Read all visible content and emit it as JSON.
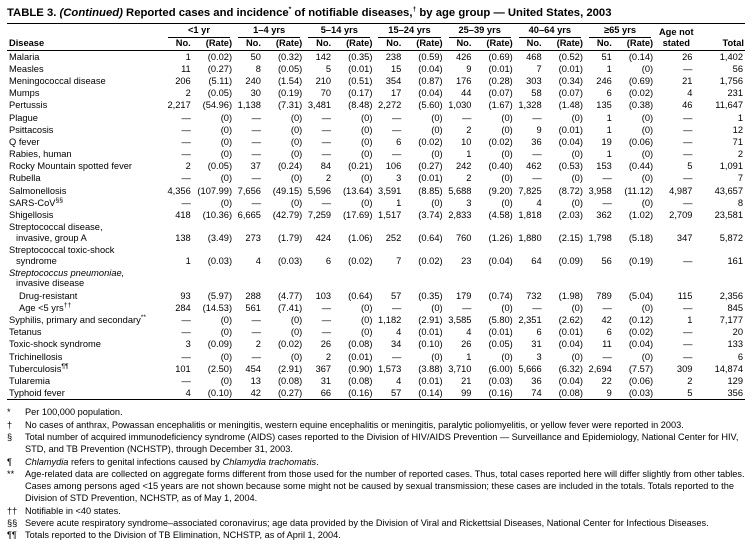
{
  "title": {
    "label": "TABLE 3.",
    "continued": "(Continued)",
    "main_pre": "Reported cases and incidence",
    "sup1": "*",
    "main_mid": " of notifiable diseases,",
    "sup2": "†",
    "main_post": " by age group — United States, 2003"
  },
  "table": {
    "age_groups": [
      "<1 yr",
      "1–4 yrs",
      "5–14 yrs",
      "15–24 yrs",
      "25–39 yrs",
      "40–64 yrs",
      "≥65 yrs"
    ],
    "headers": {
      "disease": "Disease",
      "no": "No.",
      "rate": "(Rate)",
      "age_not_line1": "Age not",
      "age_not_line2": "stated",
      "total": "Total"
    },
    "rows": [
      {
        "name": "Malaria",
        "cells": [
          "1",
          "(0.02)",
          "50",
          "(0.32)",
          "142",
          "(0.35)",
          "238",
          "(0.59)",
          "426",
          "(0.69)",
          "468",
          "(0.52)",
          "51",
          "(0.14)",
          "26",
          "1,402"
        ]
      },
      {
        "name": "Measles",
        "cells": [
          "11",
          "(0.27)",
          "8",
          "(0.05)",
          "5",
          "(0.01)",
          "15",
          "(0.04)",
          "9",
          "(0.01)",
          "7",
          "(0.01)",
          "1",
          "(0)",
          "—",
          "56"
        ]
      },
      {
        "name": "Meningococcal disease",
        "cells": [
          "206",
          "(5.11)",
          "240",
          "(1.54)",
          "210",
          "(0.51)",
          "354",
          "(0.87)",
          "176",
          "(0.28)",
          "303",
          "(0.34)",
          "246",
          "(0.69)",
          "21",
          "1,756"
        ]
      },
      {
        "name": "Mumps",
        "cells": [
          "2",
          "(0.05)",
          "30",
          "(0.19)",
          "70",
          "(0.17)",
          "17",
          "(0.04)",
          "44",
          "(0.07)",
          "58",
          "(0.07)",
          "6",
          "(0.02)",
          "4",
          "231"
        ]
      },
      {
        "name": "Pertussis",
        "cells": [
          "2,217",
          "(54.96)",
          "1,138",
          "(7.31)",
          "3,481",
          "(8.48)",
          "2,272",
          "(5.60)",
          "1,030",
          "(1.67)",
          "1,328",
          "(1.48)",
          "135",
          "(0.38)",
          "46",
          "11,647"
        ]
      },
      {
        "name": "Plague",
        "cells": [
          "—",
          "(0)",
          "—",
          "(0)",
          "—",
          "(0)",
          "—",
          "(0)",
          "—",
          "(0)",
          "—",
          "(0)",
          "1",
          "(0)",
          "—",
          "1"
        ]
      },
      {
        "name": "Psittacosis",
        "cells": [
          "—",
          "(0)",
          "—",
          "(0)",
          "—",
          "(0)",
          "—",
          "(0)",
          "2",
          "(0)",
          "9",
          "(0.01)",
          "1",
          "(0)",
          "—",
          "12"
        ]
      },
      {
        "name": "Q fever",
        "cells": [
          "—",
          "(0)",
          "—",
          "(0)",
          "—",
          "(0)",
          "6",
          "(0.02)",
          "10",
          "(0.02)",
          "36",
          "(0.04)",
          "19",
          "(0.06)",
          "—",
          "71"
        ]
      },
      {
        "name": "Rabies, human",
        "cells": [
          "—",
          "(0)",
          "—",
          "(0)",
          "—",
          "(0)",
          "—",
          "(0)",
          "1",
          "(0)",
          "—",
          "(0)",
          "1",
          "(0)",
          "—",
          "2"
        ]
      },
      {
        "name": "Rocky Mountain spotted fever",
        "cells": [
          "2",
          "(0.05)",
          "37",
          "(0.24)",
          "84",
          "(0.21)",
          "106",
          "(0.27)",
          "242",
          "(0.40)",
          "462",
          "(0.53)",
          "153",
          "(0.44)",
          "5",
          "1,091"
        ]
      },
      {
        "name": "Rubella",
        "cells": [
          "—",
          "(0)",
          "—",
          "(0)",
          "2",
          "(0)",
          "3",
          "(0.01)",
          "2",
          "(0)",
          "—",
          "(0)",
          "—",
          "(0)",
          "—",
          "7"
        ]
      },
      {
        "name": "Salmonellosis",
        "cells": [
          "4,356",
          "(107.99)",
          "7,656",
          "(49.15)",
          "5,596",
          "(13.64)",
          "3,591",
          "(8.85)",
          "5,688",
          "(9.20)",
          "7,825",
          "(8.72)",
          "3,958",
          "(11.12)",
          "4,987",
          "43,657"
        ]
      },
      {
        "name": "SARS-CoV",
        "sup": "§§",
        "cells": [
          "—",
          "(0)",
          "—",
          "(0)",
          "—",
          "(0)",
          "1",
          "(0)",
          "3",
          "(0)",
          "4",
          "(0)",
          "—",
          "(0)",
          "—",
          "8"
        ]
      },
      {
        "name": "Shigellosis",
        "cells": [
          "418",
          "(10.36)",
          "6,665",
          "(42.79)",
          "7,259",
          "(17.69)",
          "1,517",
          "(3.74)",
          "2,833",
          "(4.58)",
          "1,818",
          "(2.03)",
          "362",
          "(1.02)",
          "2,709",
          "23,581"
        ]
      },
      {
        "name": "Streptococcal disease,",
        "name2": "invasive, group A",
        "cells": [
          "138",
          "(3.49)",
          "273",
          "(1.79)",
          "424",
          "(1.06)",
          "252",
          "(0.64)",
          "760",
          "(1.26)",
          "1,880",
          "(2.15)",
          "1,798",
          "(5.18)",
          "347",
          "5,872"
        ]
      },
      {
        "name": "Streptococcal toxic-shock",
        "name2": "syndrome",
        "cells": [
          "1",
          "(0.03)",
          "4",
          "(0.03)",
          "6",
          "(0.02)",
          "7",
          "(0.02)",
          "23",
          "(0.04)",
          "64",
          "(0.09)",
          "56",
          "(0.19)",
          "—",
          "161"
        ]
      },
      {
        "name": "Streptococcus pneumoniae,",
        "italic": true,
        "name2": "invasive disease",
        "cells": null
      },
      {
        "name": "Drug-resistant",
        "indent": true,
        "cells": [
          "93",
          "(5.97)",
          "288",
          "(4.77)",
          "103",
          "(0.64)",
          "57",
          "(0.35)",
          "179",
          "(0.74)",
          "732",
          "(1.98)",
          "789",
          "(5.04)",
          "115",
          "2,356"
        ]
      },
      {
        "name": "Age <5 yrs",
        "sup": "††",
        "indent": true,
        "cells": [
          "284",
          "(14.53)",
          "561",
          "(7.41)",
          "—",
          "(0)",
          "—",
          "(0)",
          "—",
          "(0)",
          "—",
          "(0)",
          "—",
          "(0)",
          "—",
          "845"
        ]
      },
      {
        "name": "Syphilis, primary and secondary",
        "sup": "**",
        "cells": [
          "—",
          "(0)",
          "—",
          "(0)",
          "—",
          "(0)",
          "1,182",
          "(2.91)",
          "3,585",
          "(5.80)",
          "2,351",
          "(2.62)",
          "42",
          "(0.12)",
          "1",
          "7,177"
        ]
      },
      {
        "name": "Tetanus",
        "cells": [
          "—",
          "(0)",
          "—",
          "(0)",
          "—",
          "(0)",
          "4",
          "(0.01)",
          "4",
          "(0.01)",
          "6",
          "(0.01)",
          "6",
          "(0.02)",
          "—",
          "20"
        ]
      },
      {
        "name": "Toxic-shock syndrome",
        "cells": [
          "3",
          "(0.09)",
          "2",
          "(0.02)",
          "26",
          "(0.08)",
          "34",
          "(0.10)",
          "26",
          "(0.05)",
          "31",
          "(0.04)",
          "11",
          "(0.04)",
          "—",
          "133"
        ]
      },
      {
        "name": "Trichinellosis",
        "cells": [
          "—",
          "(0)",
          "—",
          "(0)",
          "2",
          "(0.01)",
          "—",
          "(0)",
          "1",
          "(0)",
          "3",
          "(0)",
          "—",
          "(0)",
          "—",
          "6"
        ]
      },
      {
        "name": "Tuberculosis",
        "sup": "¶¶",
        "cells": [
          "101",
          "(2.50)",
          "454",
          "(2.91)",
          "367",
          "(0.90)",
          "1,573",
          "(3.88)",
          "3,710",
          "(6.00)",
          "5,666",
          "(6.32)",
          "2,694",
          "(7.57)",
          "309",
          "14,874"
        ]
      },
      {
        "name": "Tularemia",
        "cells": [
          "—",
          "(0)",
          "13",
          "(0.08)",
          "31",
          "(0.08)",
          "4",
          "(0.01)",
          "21",
          "(0.03)",
          "36",
          "(0.04)",
          "22",
          "(0.06)",
          "2",
          "129"
        ]
      },
      {
        "name": "Typhoid fever",
        "cells": [
          "4",
          "(0.10)",
          "42",
          "(0.27)",
          "66",
          "(0.16)",
          "57",
          "(0.14)",
          "99",
          "(0.16)",
          "74",
          "(0.08)",
          "9",
          "(0.03)",
          "5",
          "356"
        ]
      }
    ]
  },
  "footnotes": [
    {
      "marker": "*",
      "parts": [
        {
          "text": "Per 100,000 population."
        }
      ]
    },
    {
      "marker": "†",
      "parts": [
        {
          "text": "No cases of anthrax, Powassan encephalitis or meningitis, western equine encephalitis or meningitis, paralytic poliomyelitis, or yellow fever were reported in 2003."
        }
      ]
    },
    {
      "marker": "§",
      "parts": [
        {
          "text": "Total number of acquired immunodeficiency syndrome (AIDS) cases reported to the Division of HIV/AIDS Prevention — Surveillance and Epidemiology, National Center for HIV, STD, and TB Prevention (NCHSTP), through December 31, 2003."
        }
      ]
    },
    {
      "marker": "¶",
      "parts": [
        {
          "text": "Chlamydia",
          "italic": true
        },
        {
          "text": " refers to genital infections caused by "
        },
        {
          "text": "Chlamydia trachomatis",
          "italic": true
        },
        {
          "text": "."
        }
      ]
    },
    {
      "marker": "**",
      "parts": [
        {
          "text": "Age-related data are collected on aggregate forms different from those used for the number of reported cases. Thus, total cases reported here will differ slightly from other tables. Cases among persons aged <15 years are not shown because some might not be caused by sexual transmission; these cases are included in the totals. Totals reported to the Division of STD Prevention, NCHSTP, as of May 1, 2004."
        }
      ]
    },
    {
      "marker": "††",
      "parts": [
        {
          "text": "Notifiable in <40 states."
        }
      ]
    },
    {
      "marker": "§§",
      "parts": [
        {
          "text": "Severe acute respiratory syndrome–associated coronavirus; age data provided by the Division of Viral and Rickettsial Diseases, National Center for Infectious Diseases."
        }
      ]
    },
    {
      "marker": "¶¶",
      "parts": [
        {
          "text": "Totals reported to the Division of TB Elimination, NCHSTP, as of April 1, 2004."
        }
      ]
    }
  ]
}
